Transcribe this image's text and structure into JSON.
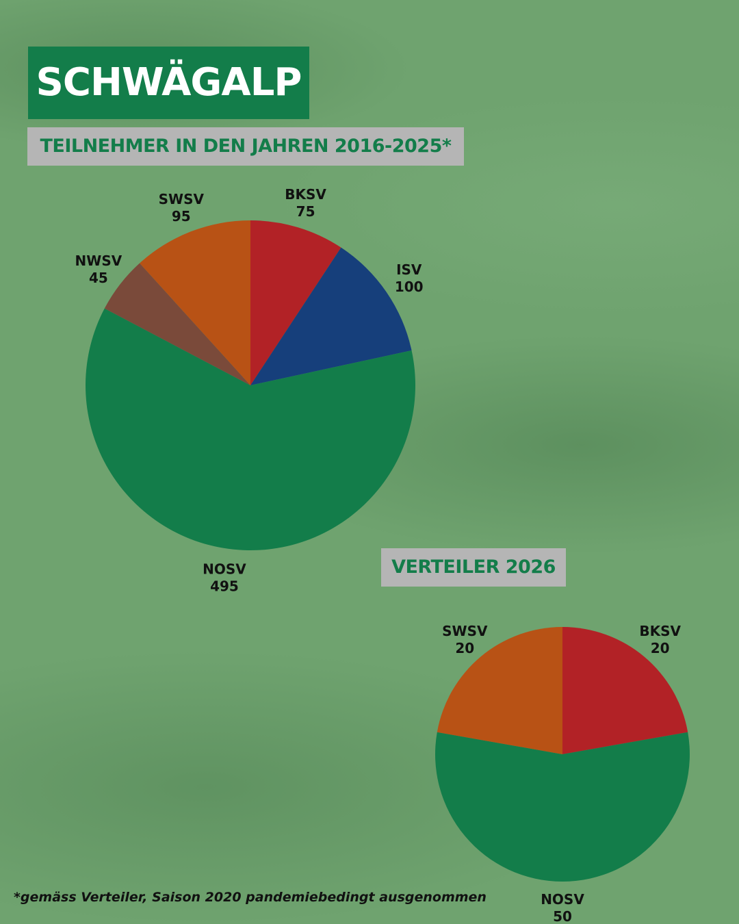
{
  "title": "SCHWÄGALP",
  "footnote": "*gemäss Verteiler, Saison 2020 pandemiebedingt ausgenommen",
  "chart_data": [
    {
      "type": "pie",
      "title": "TEILNEHMER IN DEN JAHREN 2016-2025*",
      "categories": [
        "BKSV",
        "ISV",
        "NOSV",
        "NWSV",
        "SWSV"
      ],
      "values": [
        75,
        100,
        495,
        45,
        95
      ],
      "colors": [
        "#b22226",
        "#163f7b",
        "#137d4a",
        "#7a4a3a",
        "#b85215"
      ]
    },
    {
      "type": "pie",
      "title": "VERTEILER 2026",
      "categories": [
        "BKSV",
        "NOSV",
        "SWSV"
      ],
      "values": [
        20,
        50,
        20
      ],
      "colors": [
        "#b22226",
        "#137d4a",
        "#b85215"
      ]
    }
  ]
}
